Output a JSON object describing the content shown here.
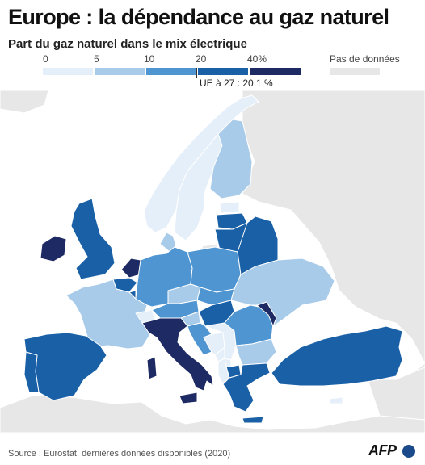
{
  "title": "Europe : la dépendance au gaz naturel",
  "subtitle": "Part du gaz naturel dans le mix électrique",
  "legend": {
    "ticks": [
      "0",
      "5",
      "10",
      "20",
      "40%"
    ],
    "bins": [
      {
        "from": 0,
        "to": 5,
        "color": "#e4eff9"
      },
      {
        "from": 5,
        "to": 10,
        "color": "#a9cbea"
      },
      {
        "from": 10,
        "to": 20,
        "color": "#4f95d1"
      },
      {
        "from": 20,
        "to": 40,
        "color": "#1960a6"
      },
      {
        "from": 40,
        "to": null,
        "color": "#1d2a63"
      }
    ],
    "no_data_label": "Pas de données",
    "no_data_color": "#e7e7e7",
    "eu_label": "UE à 27 : 20,1 %"
  },
  "map_colors": {
    "sea": "#ffffff",
    "land_other": "#e7e7e7",
    "border": "#ffffff"
  },
  "countries": [
    {
      "name": "Norway",
      "bin": 0
    },
    {
      "name": "Sweden",
      "bin": 0
    },
    {
      "name": "Finland",
      "bin": 1
    },
    {
      "name": "Estonia",
      "bin": 0
    },
    {
      "name": "Latvia",
      "bin": 3
    },
    {
      "name": "Lithuania",
      "bin": 3
    },
    {
      "name": "Denmark",
      "bin": 1
    },
    {
      "name": "Ireland",
      "bin": 4
    },
    {
      "name": "United Kingdom",
      "bin": 3
    },
    {
      "name": "Netherlands",
      "bin": 4
    },
    {
      "name": "Belgium",
      "bin": 3
    },
    {
      "name": "Luxembourg",
      "bin": 3
    },
    {
      "name": "France",
      "bin": 1
    },
    {
      "name": "Germany",
      "bin": 2
    },
    {
      "name": "Poland",
      "bin": 2
    },
    {
      "name": "Czechia",
      "bin": 1
    },
    {
      "name": "Slovakia",
      "bin": 2
    },
    {
      "name": "Austria",
      "bin": 2
    },
    {
      "name": "Switzerland",
      "bin": 0
    },
    {
      "name": "Hungary",
      "bin": 3
    },
    {
      "name": "Slovenia",
      "bin": 1
    },
    {
      "name": "Croatia",
      "bin": 2
    },
    {
      "name": "Bosnia and Herzegovina",
      "bin": 0
    },
    {
      "name": "Serbia",
      "bin": 0
    },
    {
      "name": "Montenegro",
      "bin": 0
    },
    {
      "name": "Kosovo",
      "bin": 0
    },
    {
      "name": "Albania",
      "bin": 0
    },
    {
      "name": "North Macedonia",
      "bin": 3
    },
    {
      "name": "Romania",
      "bin": 2
    },
    {
      "name": "Moldova",
      "bin": 4
    },
    {
      "name": "Ukraine",
      "bin": 1
    },
    {
      "name": "Belarus",
      "bin": 3
    },
    {
      "name": "Bulgaria",
      "bin": 1
    },
    {
      "name": "Greece",
      "bin": 3
    },
    {
      "name": "Turkey",
      "bin": 3
    },
    {
      "name": "Italy",
      "bin": 4
    },
    {
      "name": "Spain",
      "bin": 3
    },
    {
      "name": "Portugal",
      "bin": 3
    },
    {
      "name": "Cyprus",
      "bin": 0
    }
  ],
  "source": "Source : Eurostat, dernières données disponibles (2020)",
  "logo": "AFP"
}
